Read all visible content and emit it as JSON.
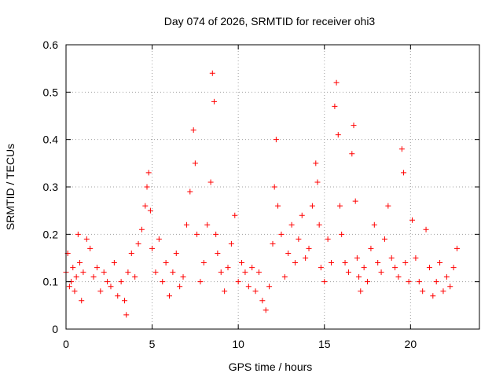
{
  "chart_data": {
    "type": "scatter",
    "title": "Day 074 of 2026, SRMTID for receiver ohi3",
    "xlabel": "GPS time / hours",
    "ylabel": "SRMTID / TECUs",
    "xlim": [
      0,
      24
    ],
    "ylim": [
      0,
      0.6
    ],
    "xticks": [
      0,
      5,
      10,
      15,
      20
    ],
    "xtick_labels": [
      "0",
      "5",
      "10",
      "15",
      "20"
    ],
    "yticks": [
      0,
      0.1,
      0.2,
      0.3,
      0.4,
      0.5,
      0.6
    ],
    "ytick_labels": [
      "0",
      "0.1",
      "0.2",
      "0.3",
      "0.4",
      "0.5",
      "0.6"
    ],
    "grid": true,
    "marker": "plus",
    "color": "#ff0000",
    "series": [
      {
        "name": "SRMTID",
        "x": [
          0.0,
          0.1,
          0.2,
          0.3,
          0.4,
          0.5,
          0.6,
          0.7,
          0.8,
          0.9,
          1.0,
          1.2,
          1.4,
          1.6,
          1.8,
          2.0,
          2.2,
          2.4,
          2.6,
          2.8,
          3.0,
          3.2,
          3.4,
          3.5,
          3.6,
          3.8,
          4.0,
          4.2,
          4.4,
          4.6,
          4.7,
          4.8,
          4.9,
          5.0,
          5.2,
          5.4,
          5.6,
          5.8,
          6.0,
          6.2,
          6.4,
          6.6,
          6.8,
          7.0,
          7.2,
          7.4,
          7.5,
          7.6,
          7.8,
          8.0,
          8.2,
          8.4,
          8.5,
          8.6,
          8.7,
          8.8,
          9.0,
          9.2,
          9.4,
          9.6,
          9.8,
          10.0,
          10.2,
          10.4,
          10.6,
          10.8,
          11.0,
          11.2,
          11.4,
          11.6,
          11.8,
          12.0,
          12.1,
          12.2,
          12.3,
          12.5,
          12.7,
          12.9,
          13.1,
          13.3,
          13.5,
          13.7,
          13.9,
          14.1,
          14.3,
          14.5,
          14.6,
          14.7,
          14.8,
          15.0,
          15.2,
          15.4,
          15.6,
          15.7,
          15.8,
          15.9,
          16.0,
          16.2,
          16.4,
          16.6,
          16.7,
          16.8,
          16.9,
          17.0,
          17.1,
          17.3,
          17.5,
          17.7,
          17.9,
          18.1,
          18.3,
          18.5,
          18.7,
          18.9,
          19.1,
          19.3,
          19.5,
          19.6,
          19.7,
          19.9,
          20.1,
          20.3,
          20.5,
          20.7,
          20.9,
          21.1,
          21.3,
          21.5,
          21.7,
          21.9,
          22.1,
          22.3,
          22.5,
          22.7
        ],
        "y": [
          0.12,
          0.16,
          0.09,
          0.1,
          0.13,
          0.08,
          0.11,
          0.2,
          0.14,
          0.06,
          0.12,
          0.19,
          0.17,
          0.11,
          0.13,
          0.08,
          0.12,
          0.1,
          0.09,
          0.14,
          0.07,
          0.1,
          0.06,
          0.03,
          0.12,
          0.16,
          0.11,
          0.18,
          0.21,
          0.26,
          0.3,
          0.33,
          0.25,
          0.17,
          0.12,
          0.19,
          0.1,
          0.14,
          0.07,
          0.12,
          0.16,
          0.09,
          0.11,
          0.22,
          0.29,
          0.42,
          0.35,
          0.2,
          0.1,
          0.14,
          0.22,
          0.31,
          0.54,
          0.48,
          0.2,
          0.16,
          0.12,
          0.08,
          0.13,
          0.18,
          0.24,
          0.1,
          0.14,
          0.12,
          0.09,
          0.13,
          0.08,
          0.12,
          0.06,
          0.04,
          0.09,
          0.18,
          0.3,
          0.4,
          0.26,
          0.2,
          0.11,
          0.16,
          0.22,
          0.14,
          0.19,
          0.24,
          0.15,
          0.17,
          0.26,
          0.35,
          0.31,
          0.22,
          0.13,
          0.1,
          0.19,
          0.14,
          0.47,
          0.52,
          0.41,
          0.26,
          0.2,
          0.14,
          0.12,
          0.37,
          0.43,
          0.27,
          0.15,
          0.11,
          0.08,
          0.13,
          0.1,
          0.17,
          0.22,
          0.14,
          0.12,
          0.19,
          0.26,
          0.15,
          0.13,
          0.11,
          0.38,
          0.33,
          0.14,
          0.1,
          0.23,
          0.15,
          0.1,
          0.08,
          0.21,
          0.13,
          0.07,
          0.1,
          0.14,
          0.08,
          0.11,
          0.09,
          0.13,
          0.17
        ]
      }
    ]
  }
}
